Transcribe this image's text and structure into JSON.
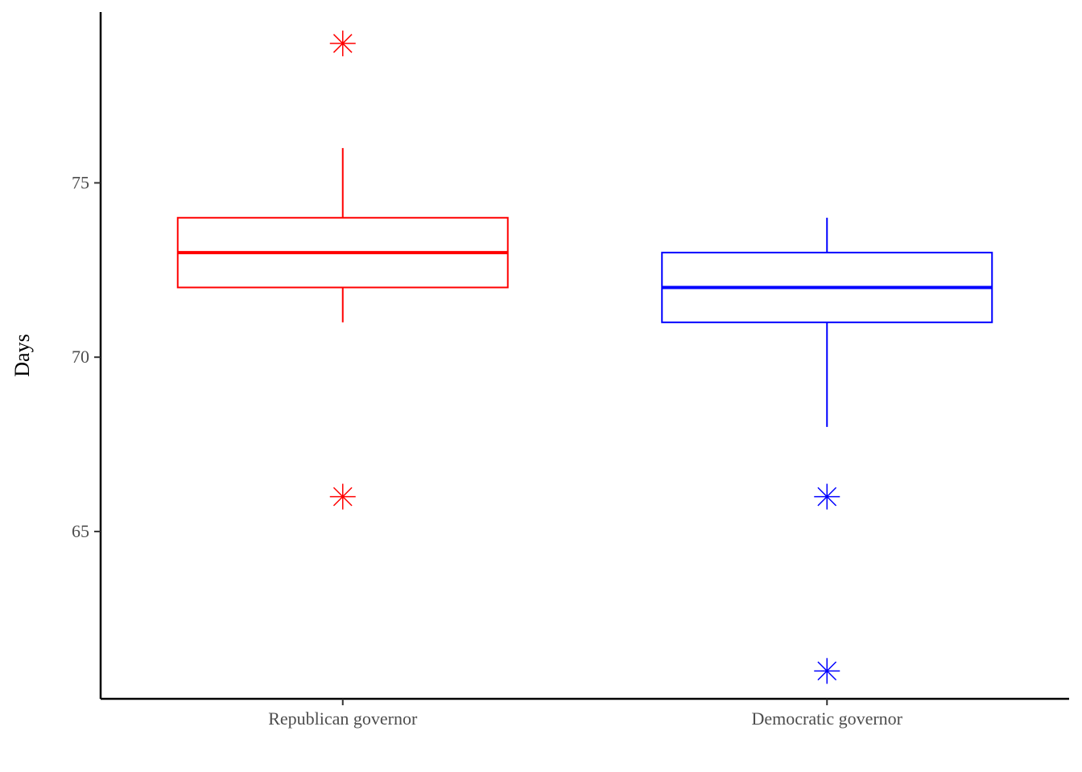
{
  "chart_data": {
    "type": "box",
    "ylabel": "Days",
    "xlabel": "",
    "ylim": [
      60.2,
      79.9
    ],
    "y_ticks": [
      65,
      70,
      75
    ],
    "grid": false,
    "legend": "none",
    "categories": [
      "Republican governor",
      "Democratic governor"
    ],
    "series": [
      {
        "category": "Republican governor",
        "color": "#ff0000",
        "whisker_low": 71,
        "q1": 72,
        "median": 73,
        "q3": 74,
        "whisker_high": 76,
        "outliers": [
          79,
          66
        ]
      },
      {
        "category": "Democratic governor",
        "color": "#0000ff",
        "whisker_low": 68,
        "q1": 71,
        "median": 72,
        "q3": 73,
        "whisker_high": 74,
        "outliers": [
          66,
          61
        ]
      }
    ]
  }
}
